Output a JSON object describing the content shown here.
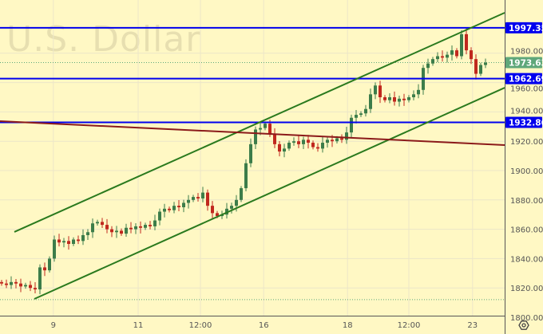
{
  "watermark": "U.S. Dollar",
  "chart_data": {
    "type": "candlestick",
    "title": "",
    "ylim": [
      1800,
      2000
    ],
    "y_ticks": [
      "1800.00",
      "1820.00",
      "1840.00",
      "1860.00",
      "1880.00",
      "1900.00",
      "1920.00",
      "1940.00",
      "1960.00",
      "1980.00"
    ],
    "x_ticks": [
      {
        "label": "9",
        "at": 10.8
      },
      {
        "label": "11",
        "at": 28.5
      },
      {
        "label": "12:00",
        "at": 41.5
      },
      {
        "label": "16",
        "at": 54.7
      },
      {
        "label": "18",
        "at": 72.2
      },
      {
        "label": "12:00",
        "at": 85
      },
      {
        "label": "23",
        "at": 98.3
      }
    ],
    "start_open": 1824,
    "closes": [
      1823,
      1822,
      1824,
      1823,
      1821,
      1822,
      1820,
      1819,
      1834,
      1832,
      1840,
      1853,
      1851,
      1852,
      1850,
      1853,
      1852,
      1856,
      1858,
      1864,
      1865,
      1863,
      1860,
      1858,
      1859,
      1857,
      1861,
      1860,
      1862,
      1861,
      1863,
      1862,
      1866,
      1872,
      1874,
      1873,
      1876,
      1875,
      1878,
      1880,
      1882,
      1881,
      1885,
      1876,
      1871,
      1869,
      1870,
      1874,
      1876,
      1880,
      1888,
      1905,
      1918,
      1928,
      1929,
      1932,
      1925,
      1918,
      1913,
      1915,
      1919,
      1920,
      1918,
      1921,
      1919,
      1916,
      1915,
      1919,
      1921,
      1920,
      1922,
      1921,
      1926,
      1936,
      1938,
      1939,
      1942,
      1952,
      1958,
      1950,
      1948,
      1950,
      1947,
      1949,
      1948,
      1950,
      1952,
      1955,
      1970,
      1973,
      1976,
      1978,
      1977,
      1979,
      1982,
      1978,
      1993,
      1982,
      1976,
      1966,
      1972,
      1973.63
    ],
    "current_price": {
      "value": 1973.63,
      "label": "1973.63",
      "color": "#5fa77a"
    },
    "horizontal_levels": [
      {
        "value": 1997.35,
        "label": "1997.35",
        "color": "#0000ee"
      },
      {
        "value": 1962.69,
        "label": "1962.69",
        "color": "#0000ee"
      },
      {
        "value": 1932.86,
        "label": "1932.86",
        "color": "#0000ee"
      }
    ],
    "dotted_level": {
      "value": 1812,
      "color": "#5fa77a"
    },
    "trend_lines": [
      {
        "role": "channel-upper",
        "color": "#2a7a1e",
        "points": [
          [
            2.67,
            1858.2
          ],
          [
            105,
            2007.6
          ]
        ]
      },
      {
        "role": "channel-lower",
        "color": "#2a7a1e",
        "points": [
          [
            6.83,
            1812.5
          ],
          [
            105,
            1956.5
          ]
        ]
      },
      {
        "role": "resistance",
        "color": "#8b1a1a",
        "points": [
          [
            -0.33,
            1933.7
          ],
          [
            105,
            1917.4
          ]
        ]
      }
    ],
    "colors": {
      "up": "#3c7d4a",
      "down": "#c0281e",
      "background": "#fff8c4",
      "grid": "#ece6c8"
    }
  },
  "settings_icon": "gear-hexagon-icon"
}
